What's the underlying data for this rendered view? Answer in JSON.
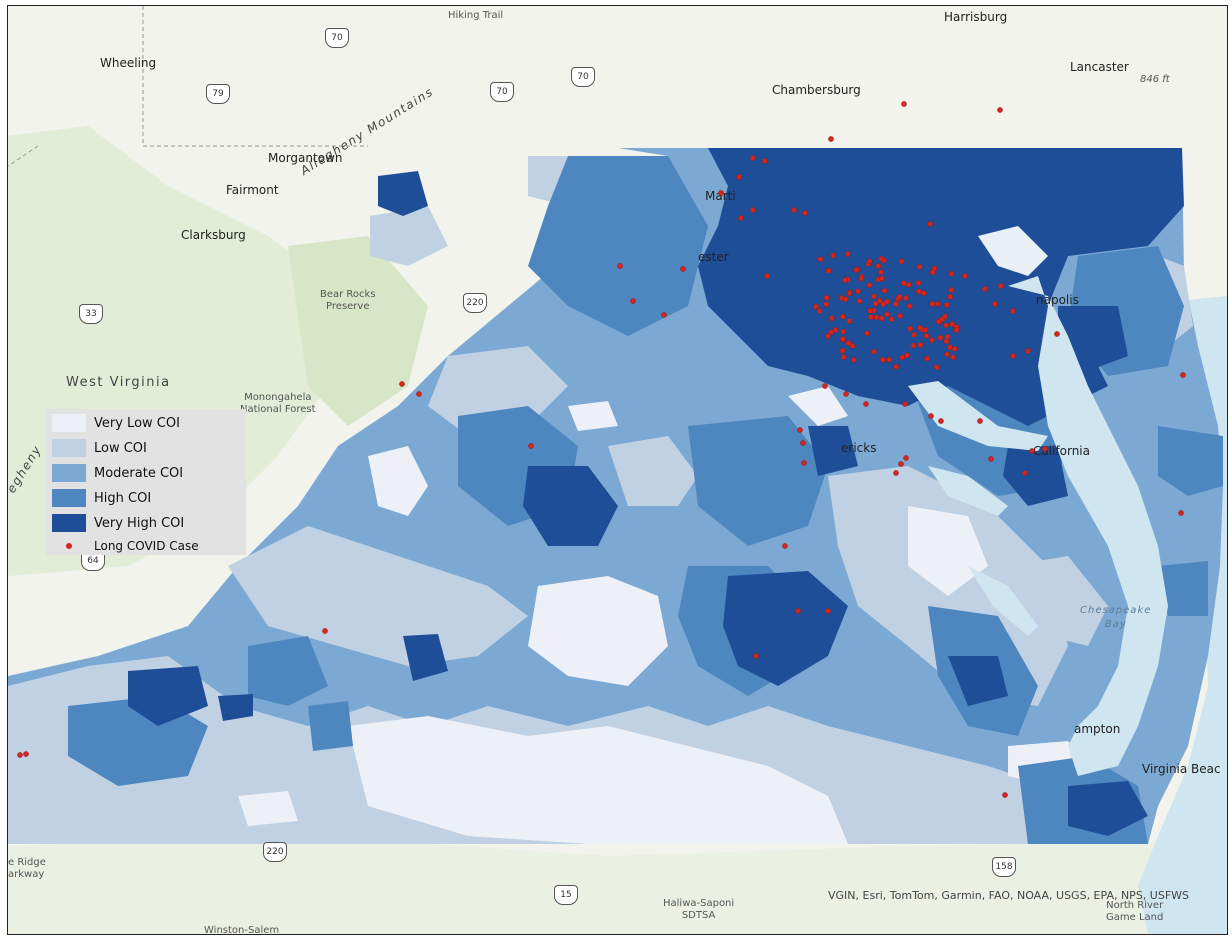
{
  "map": {
    "place_labels": {
      "harrisburg": "Harrisburg",
      "wheeling": "Wheeling",
      "lancaster": "Lancaster",
      "chambersburg": "Chambersburg",
      "morgantown": "Morgantown",
      "fairmont": "Fairmont",
      "clarksburg": "Clarksburg",
      "martinsburg_partial": "Marti",
      "winchester_partial": "ester",
      "annapolis_partial": "napolis",
      "fredericksburg_partial": "ericks",
      "california": "California",
      "hampton_partial": "ampton",
      "virginia_beach_partial": "Virginia Beac",
      "hiking_trail": "Hiking Trail",
      "bear_rocks": "Bear Rocks\nPreserve",
      "monongahela": "Monongahela\nNational Forest",
      "blue_ridge": "e Ridge\narkway",
      "haliwa": "Haliwa-Saponi\nSDTSA",
      "north_river": "North River\nGame Land",
      "elevation": "846 ft",
      "state_wv": "West Virginia",
      "mountains": "Allegheny Mountains",
      "mountains_edge": "egheny",
      "chesapeake_bay": "Chesapeake\nBay",
      "winston_partial": "Winston-Salem"
    },
    "highway_shields": [
      "70",
      "79",
      "70",
      "70",
      "33",
      "220",
      "64",
      "220",
      "15",
      "158"
    ],
    "attribution": "VGIN, Esri, TomTom, Garmin, FAO, NOAA, USGS, EPA, NPS, USFWS",
    "colors": {
      "very_low": "#eef0f8",
      "low": "#c0d1e3",
      "moderate": "#7ba9d3",
      "high": "#4e86c0",
      "very_high": "#1f4e99",
      "case_dot": "#d3261f",
      "water": "#cfe6f1",
      "land": "#f1f3ec"
    }
  },
  "legend": {
    "items": [
      {
        "label": "Very Low COI",
        "color": "#eef0f8"
      },
      {
        "label": "Low COI",
        "color": "#c0d1e3"
      },
      {
        "label": "Moderate COI",
        "color": "#7ba9d3"
      },
      {
        "label": "High COI",
        "color": "#4e86c0"
      },
      {
        "label": "Very High COI",
        "color": "#1f4e99"
      }
    ],
    "case_label": "Long COVID Case"
  }
}
